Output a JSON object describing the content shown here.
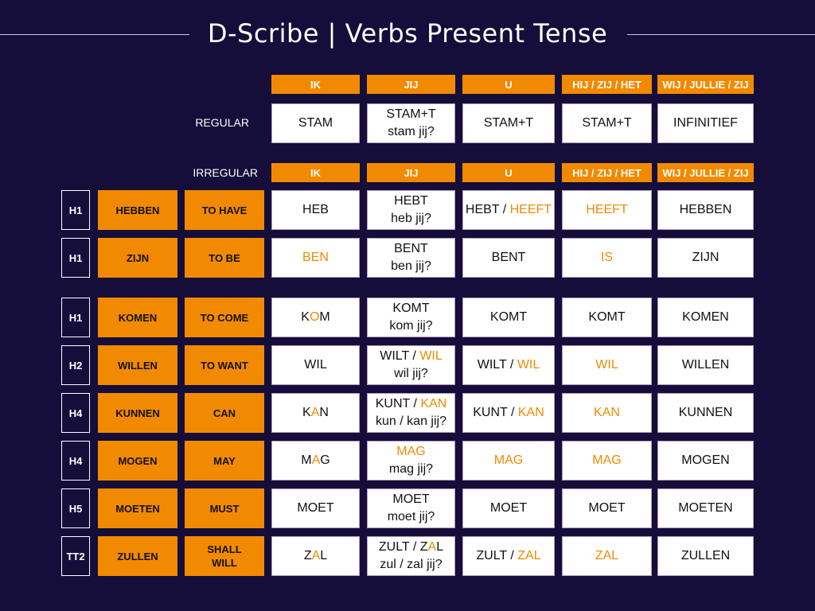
{
  "title": "D-Scribe | Verbs Present Tense",
  "colors": {
    "background": "#150d3a",
    "accent": "#f18a00",
    "cell_bg": "#ffffff"
  },
  "pronouns": [
    "IK",
    "JIJ",
    "U",
    "HIJ / ZIJ / HET",
    "WIJ / JULLIE / ZIJ"
  ],
  "regular": {
    "label": "REGULAR",
    "cells": [
      {
        "l1": [
          {
            "t": "STAM"
          }
        ]
      },
      {
        "l1": [
          {
            "t": "STAM+T"
          }
        ],
        "l2": [
          {
            "t": "stam jij?"
          }
        ]
      },
      {
        "l1": [
          {
            "t": "STAM+T"
          }
        ]
      },
      {
        "l1": [
          {
            "t": "STAM+T"
          }
        ]
      },
      {
        "l1": [
          {
            "t": "INFINITIEF"
          }
        ]
      }
    ]
  },
  "irregular_label": "IRREGULAR",
  "verbs": [
    {
      "code": "H1",
      "verb": "HEBBEN",
      "translation": [
        "TO HAVE"
      ],
      "cells": [
        {
          "l1": [
            {
              "t": "HEB"
            }
          ]
        },
        {
          "l1": [
            {
              "t": "HEBT"
            }
          ],
          "l2": [
            {
              "t": "heb jij?"
            }
          ]
        },
        {
          "l1": [
            {
              "t": "HEBT / "
            },
            {
              "t": "HEEFT",
              "h": true
            }
          ]
        },
        {
          "l1": [
            {
              "t": "HEEFT",
              "h": true
            }
          ]
        },
        {
          "l1": [
            {
              "t": "HEBBEN"
            }
          ]
        }
      ]
    },
    {
      "code": "H1",
      "verb": "ZIJN",
      "translation": [
        "TO BE"
      ],
      "cells": [
        {
          "l1": [
            {
              "t": "BEN",
              "h": true
            }
          ]
        },
        {
          "l1": [
            {
              "t": "BENT"
            }
          ],
          "l2": [
            {
              "t": "ben jij?"
            }
          ]
        },
        {
          "l1": [
            {
              "t": "BENT"
            }
          ]
        },
        {
          "l1": [
            {
              "t": "IS",
              "h": true
            }
          ]
        },
        {
          "l1": [
            {
              "t": "ZIJN"
            }
          ]
        }
      ]
    },
    {
      "code": "H1",
      "verb": "KOMEN",
      "translation": [
        "TO COME"
      ],
      "cells": [
        {
          "l1": [
            {
              "t": "K"
            },
            {
              "t": "O",
              "h": true
            },
            {
              "t": "M"
            }
          ]
        },
        {
          "l1": [
            {
              "t": "KOMT"
            }
          ],
          "l2": [
            {
              "t": "kom jij?"
            }
          ]
        },
        {
          "l1": [
            {
              "t": "KOMT"
            }
          ]
        },
        {
          "l1": [
            {
              "t": "KOMT"
            }
          ]
        },
        {
          "l1": [
            {
              "t": "KOMEN"
            }
          ]
        }
      ]
    },
    {
      "code": "H2",
      "verb": "WILLEN",
      "translation": [
        "TO WANT"
      ],
      "cells": [
        {
          "l1": [
            {
              "t": "WIL"
            }
          ]
        },
        {
          "l1": [
            {
              "t": "WILT / "
            },
            {
              "t": "WIL",
              "h": true
            }
          ],
          "l2": [
            {
              "t": "wil jij?"
            }
          ]
        },
        {
          "l1": [
            {
              "t": "WILT / "
            },
            {
              "t": "WIL",
              "h": true
            }
          ]
        },
        {
          "l1": [
            {
              "t": "WIL",
              "h": true
            }
          ]
        },
        {
          "l1": [
            {
              "t": "WILLEN"
            }
          ]
        }
      ]
    },
    {
      "code": "H4",
      "verb": "KUNNEN",
      "translation": [
        "CAN"
      ],
      "cells": [
        {
          "l1": [
            {
              "t": "K"
            },
            {
              "t": "A",
              "h": true
            },
            {
              "t": "N"
            }
          ]
        },
        {
          "l1": [
            {
              "t": "KUNT / "
            },
            {
              "t": "KAN",
              "h": true
            }
          ],
          "l2": [
            {
              "t": "kun / kan jij?"
            }
          ]
        },
        {
          "l1": [
            {
              "t": "KUNT / "
            },
            {
              "t": "KAN",
              "h": true
            }
          ]
        },
        {
          "l1": [
            {
              "t": "KAN",
              "h": true
            }
          ]
        },
        {
          "l1": [
            {
              "t": "KUNNEN"
            }
          ]
        }
      ]
    },
    {
      "code": "H4",
      "verb": "MOGEN",
      "translation": [
        "MAY"
      ],
      "cells": [
        {
          "l1": [
            {
              "t": "M"
            },
            {
              "t": "A",
              "h": true
            },
            {
              "t": "G"
            }
          ]
        },
        {
          "l1": [
            {
              "t": "MAG",
              "h": true
            }
          ],
          "l2": [
            {
              "t": "mag jij?"
            }
          ]
        },
        {
          "l1": [
            {
              "t": "MAG",
              "h": true
            }
          ]
        },
        {
          "l1": [
            {
              "t": "MAG",
              "h": true
            }
          ]
        },
        {
          "l1": [
            {
              "t": "MOGEN"
            }
          ]
        }
      ]
    },
    {
      "code": "H5",
      "verb": "MOETEN",
      "translation": [
        "MUST"
      ],
      "cells": [
        {
          "l1": [
            {
              "t": "MOET"
            }
          ]
        },
        {
          "l1": [
            {
              "t": "MOET"
            }
          ],
          "l2": [
            {
              "t": "moet jij?"
            }
          ]
        },
        {
          "l1": [
            {
              "t": "MOET"
            }
          ]
        },
        {
          "l1": [
            {
              "t": "MOET"
            }
          ]
        },
        {
          "l1": [
            {
              "t": "MOETEN"
            }
          ]
        }
      ]
    },
    {
      "code": "TT2",
      "verb": "ZULLEN",
      "translation": [
        "SHALL",
        "WILL"
      ],
      "cells": [
        {
          "l1": [
            {
              "t": "Z"
            },
            {
              "t": "A",
              "h": true
            },
            {
              "t": "L"
            }
          ]
        },
        {
          "l1": [
            {
              "t": "ZULT / Z"
            },
            {
              "t": "A",
              "h": true
            },
            {
              "t": "L"
            }
          ],
          "l2": [
            {
              "t": "zul / zal jij?"
            }
          ]
        },
        {
          "l1": [
            {
              "t": "ZULT / "
            },
            {
              "t": "ZAL",
              "h": true
            }
          ]
        },
        {
          "l1": [
            {
              "t": "ZAL",
              "h": true
            }
          ]
        },
        {
          "l1": [
            {
              "t": "ZULLEN"
            }
          ]
        }
      ]
    }
  ]
}
